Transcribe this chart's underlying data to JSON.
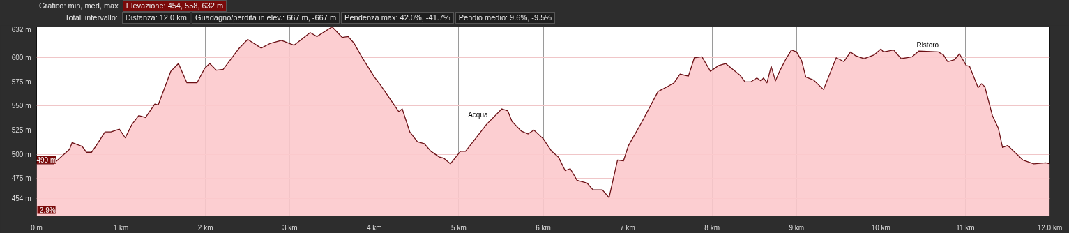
{
  "chart_data": {
    "type": "area",
    "x": [
      0,
      0.2,
      0.39,
      0.42,
      0.54,
      0.59,
      0.65,
      0.7,
      0.81,
      0.88,
      0.98,
      1.05,
      1.13,
      1.21,
      1.29,
      1.4,
      1.44,
      1.59,
      1.68,
      1.78,
      1.9,
      1.99,
      2.05,
      2.13,
      2.21,
      2.39,
      2.5,
      2.66,
      2.77,
      2.9,
      3.05,
      3.24,
      3.32,
      3.5,
      3.62,
      3.69,
      3.76,
      3.85,
      4.0,
      4.07,
      4.29,
      4.33,
      4.42,
      4.51,
      4.59,
      4.67,
      4.77,
      4.82,
      4.9,
      5.02,
      5.08,
      5.33,
      5.51,
      5.58,
      5.63,
      5.74,
      5.82,
      5.89,
      6.0,
      6.1,
      6.18,
      6.26,
      6.32,
      6.4,
      6.52,
      6.59,
      6.7,
      6.78,
      6.88,
      6.95,
      7.01,
      7.16,
      7.36,
      7.47,
      7.55,
      7.62,
      7.72,
      7.79,
      7.88,
      7.98,
      8.08,
      8.16,
      8.33,
      8.39,
      8.46,
      8.53,
      8.58,
      8.61,
      8.65,
      8.7,
      8.75,
      8.8,
      8.87,
      8.94,
      9.0,
      9.06,
      9.11,
      9.2,
      9.32,
      9.47,
      9.56,
      9.64,
      9.7,
      9.8,
      9.92,
      10.0,
      10.03,
      10.15,
      10.24,
      10.37,
      10.45,
      10.68,
      10.74,
      10.79,
      10.87,
      10.93,
      11.01,
      11.05,
      11.15,
      11.19,
      11.23,
      11.32,
      11.39,
      11.44,
      11.5,
      11.68,
      11.81,
      11.95,
      12.0
    ],
    "series": [
      {
        "color": "#6b0f14",
        "values": [
          490,
          490,
          505,
          512,
          508,
          502,
          502,
          508,
          523,
          523,
          526,
          517,
          531,
          540,
          538,
          552,
          551,
          586,
          594,
          574,
          574,
          589,
          594,
          587,
          588,
          609,
          619,
          610,
          615,
          618,
          613,
          626,
          622,
          632,
          621,
          622,
          615,
          601,
          580,
          572,
          544,
          547,
          523,
          513,
          511,
          503,
          497,
          496,
          490,
          503,
          503,
          531,
          547,
          545,
          534,
          524,
          521,
          525,
          516,
          503,
          497,
          483,
          485,
          473,
          470,
          463,
          463,
          455,
          494,
          493,
          509,
          532,
          565,
          570,
          574,
          583,
          581,
          600,
          601,
          586,
          592,
          594,
          582,
          575,
          575,
          579,
          576,
          579,
          574,
          591,
          576,
          586,
          598,
          608,
          606,
          597,
          580,
          577,
          567,
          600,
          596,
          606,
          602,
          599,
          603,
          609,
          606,
          608,
          599,
          601,
          607,
          606,
          603,
          596,
          598,
          604,
          592,
          591,
          569,
          573,
          570,
          540,
          527,
          507,
          509,
          494,
          490,
          491,
          490
        ]
      }
    ],
    "xlim": [
      0,
      12.0
    ],
    "ylim": [
      436,
      632
    ],
    "xticks": [
      {
        "value": 0,
        "label": "0 m"
      },
      {
        "value": 1,
        "label": "1 km"
      },
      {
        "value": 2,
        "label": "2 km"
      },
      {
        "value": 3,
        "label": "3 km"
      },
      {
        "value": 4,
        "label": "4 km"
      },
      {
        "value": 5,
        "label": "5 km"
      },
      {
        "value": 6,
        "label": "6 km"
      },
      {
        "value": 7,
        "label": "7 km"
      },
      {
        "value": 8,
        "label": "8 km"
      },
      {
        "value": 9,
        "label": "9 km"
      },
      {
        "value": 10,
        "label": "10 km"
      },
      {
        "value": 11,
        "label": "11 km"
      },
      {
        "value": 12,
        "label": "12.0 km"
      }
    ],
    "yticks": [
      {
        "value": 454,
        "label": "454 m"
      },
      {
        "value": 475,
        "label": "475 m"
      },
      {
        "value": 500,
        "label": "500 m"
      },
      {
        "value": 525,
        "label": "525 m"
      },
      {
        "value": 550,
        "label": "550 m"
      },
      {
        "value": 575,
        "label": "575 m"
      },
      {
        "value": 600,
        "label": "600 m"
      },
      {
        "value": 632,
        "label": "632 m"
      }
    ],
    "grid": true,
    "annotations": [
      "Grafico: min, med, max",
      "Elevazione: 454, 558, 632 m",
      "Totali intervallo:",
      "Distanza: 12.0 km",
      "Guadagno/perdita in elev.: 667 m, -667 m",
      "Pendenza max: 42.0%, -41.7%",
      "Pendio medio: 9.6%, -9.5%",
      "-2.9%",
      {
        "text": "490 m",
        "x": 0,
        "y": 490
      },
      {
        "text": "Acqua",
        "x": 5.36,
        "y": 534
      },
      {
        "text": "Ristoro",
        "x": 10.7,
        "y": 606
      }
    ]
  }
}
